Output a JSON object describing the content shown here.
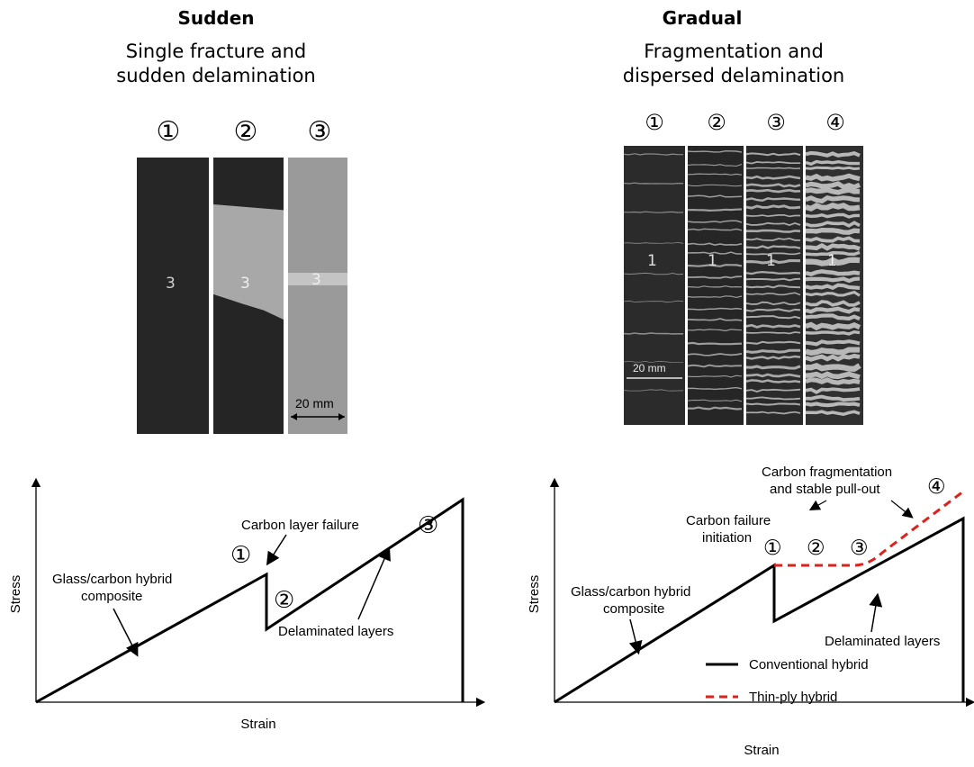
{
  "left": {
    "title": "Sudden",
    "subtitle_line1": "Single fracture and",
    "subtitle_line2": "sudden delamination",
    "photo_numbers": [
      "①",
      "②",
      "③"
    ],
    "specimen_mark": "3",
    "scale_label": "20 mm",
    "chart": {
      "xlabel": "Strain",
      "ylabel": "Stress",
      "annotations": {
        "glass_carbon_1": "Glass/carbon hybrid",
        "glass_carbon_2": "composite",
        "carbon_layer_failure": "Carbon layer failure",
        "delaminated_layers": "Delaminated layers"
      },
      "stage_markers": [
        "①",
        "②",
        "③"
      ]
    }
  },
  "right": {
    "title": "Gradual",
    "subtitle_line1": "Fragmentation and",
    "subtitle_line2": "dispersed delamination",
    "photo_numbers": [
      "①",
      "②",
      "③",
      "④"
    ],
    "specimen_mark": "1",
    "scale_label": "20 mm",
    "chart": {
      "xlabel": "Strain",
      "ylabel": "Stress",
      "annotations": {
        "carbon_fragmentation_1": "Carbon fragmentation",
        "carbon_fragmentation_2": "and stable pull-out",
        "carbon_failure_1": "Carbon failure",
        "carbon_failure_2": "initiation",
        "glass_carbon_1": "Glass/carbon hybrid",
        "glass_carbon_2": "composite",
        "delaminated_layers": "Delaminated layers"
      },
      "stage_markers": [
        "①",
        "②",
        "③",
        "④"
      ],
      "legend": {
        "conventional": "Conventional hybrid",
        "thin_ply": "Thin-ply hybrid"
      },
      "colors": {
        "conventional": "#000000",
        "thin_ply": "#e0201b"
      }
    }
  }
}
